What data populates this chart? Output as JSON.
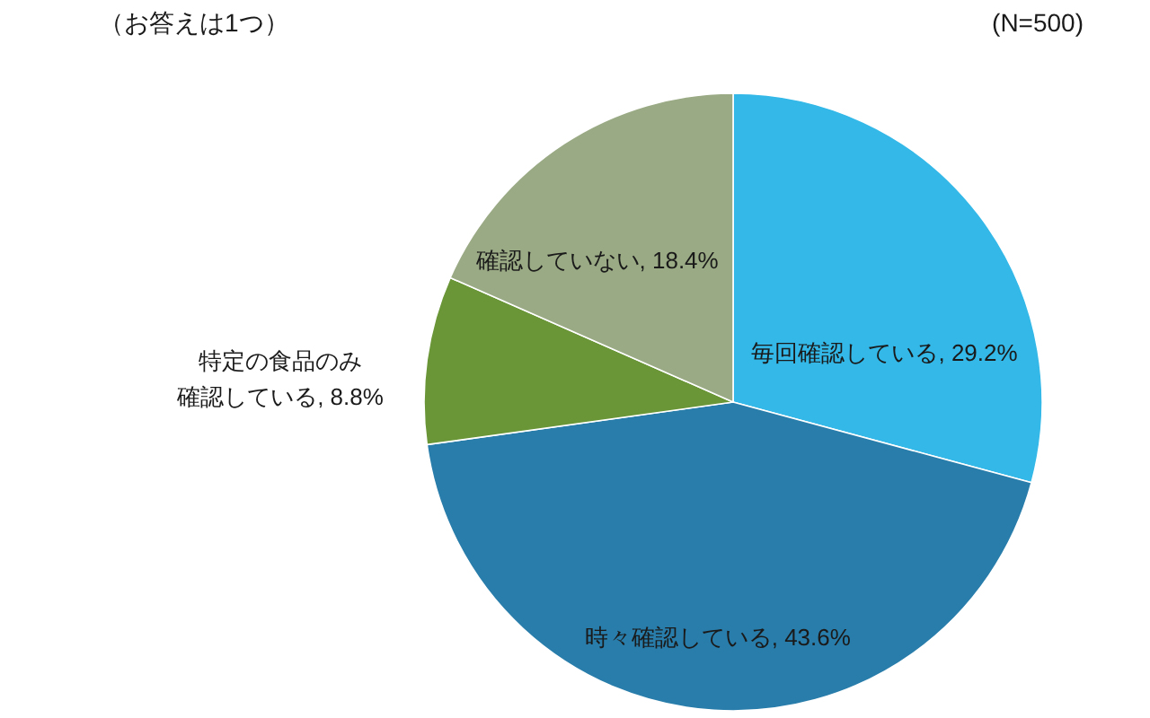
{
  "chart_data": {
    "type": "pie",
    "categories": [
      "毎回確認している",
      "時々確認している",
      "特定の食品のみ確認している",
      "確認していない"
    ],
    "values": [
      29.2,
      43.6,
      8.8,
      18.4
    ],
    "value_labels": [
      "29.2%",
      "43.6%",
      "8.8%",
      "18.4%"
    ],
    "colors": [
      "#33b8e8",
      "#297daa",
      "#6a9638",
      "#9aaa84"
    ],
    "annotations": [
      "（お答えは1つ）",
      "(N=500)"
    ]
  }
}
